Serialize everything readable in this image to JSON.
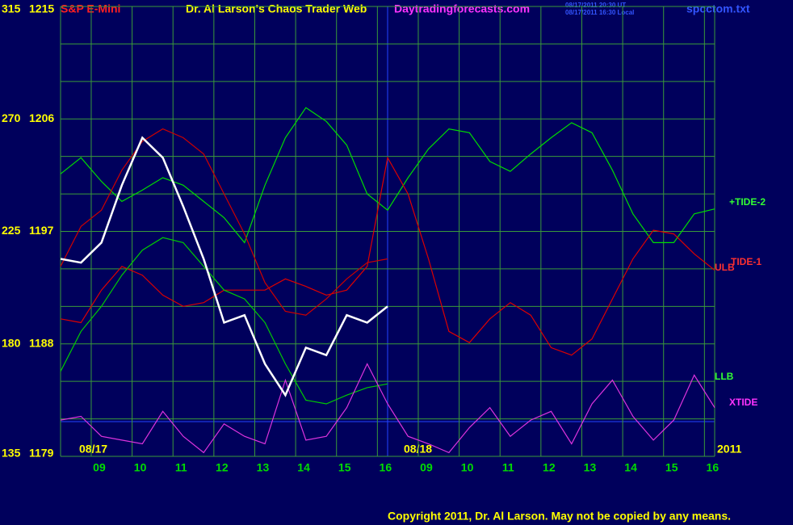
{
  "chart_data": {
    "type": "line",
    "title": "Dr. Al Larson's Chaos Trader Web",
    "subtitle": "S&P E-Mini",
    "site": "Daytradingforecasts.com",
    "timestamps": [
      "08/17/2011 20:30 UT",
      "08/17/2011 16:30 Local"
    ],
    "file": "spcctom.txt",
    "dates": [
      "08/17",
      "08/18"
    ],
    "year": "2011",
    "copyright": "Copyright 2011, Dr. Al Larson. May not be copied by any means.",
    "xlim": [
      -0.75,
      15.25
    ],
    "xticks": [
      {
        "value": 0,
        "label": "09"
      },
      {
        "value": 1,
        "label": "10"
      },
      {
        "value": 2,
        "label": "11"
      },
      {
        "value": 3,
        "label": "12"
      },
      {
        "value": 4,
        "label": "13"
      },
      {
        "value": 5,
        "label": "14"
      },
      {
        "value": 6,
        "label": "15"
      },
      {
        "value": 7,
        "label": "16"
      },
      {
        "value": 8,
        "label": "09"
      },
      {
        "value": 9,
        "label": "10"
      },
      {
        "value": 10,
        "label": "11"
      },
      {
        "value": 11,
        "label": "12"
      },
      {
        "value": 12,
        "label": "13"
      },
      {
        "value": 13,
        "label": "14"
      },
      {
        "value": 14,
        "label": "15"
      },
      {
        "value": 15,
        "label": "16"
      }
    ],
    "ylim": [
      1179,
      1215
    ],
    "yticks": [
      1179,
      1188,
      1197,
      1206,
      1215
    ],
    "ygrid": [
      1182,
      1185,
      1191,
      1194,
      1200,
      1203,
      1209,
      1212
    ],
    "y2lim": [
      135,
      315
    ],
    "y2ticks": [
      135,
      180,
      225,
      270,
      315
    ],
    "grid": true,
    "x": [
      -0.75,
      -0.25,
      0.25,
      0.75,
      1.25,
      1.75,
      2.25,
      2.75,
      3.25,
      3.75,
      4.25,
      4.75,
      5.25,
      5.75,
      6.25,
      6.75,
      7.25,
      7.75,
      8.25,
      8.75,
      9.25,
      9.75,
      10.25,
      10.75,
      11.25,
      11.75,
      12.25,
      12.75,
      13.25,
      13.75,
      14.25,
      14.75,
      15.25
    ],
    "price": {
      "color": "#ffffff",
      "values": [
        1194.8,
        1194.5,
        1196.1,
        1200.7,
        1204.5,
        1202.9,
        1199.0,
        1194.8,
        1189.7,
        1190.3,
        1186.4,
        1183.9,
        1187.7,
        1187.1,
        1190.3,
        1189.7,
        1191.0,
        null,
        null,
        null,
        null,
        null,
        null,
        null,
        null,
        null,
        null,
        null,
        null,
        null,
        null,
        null,
        null
      ]
    },
    "series": [
      {
        "name": "+TIDE-2",
        "color": "#00dd00",
        "values": [
          1201.6,
          1202.9,
          1201.0,
          1199.4,
          1200.3,
          1201.3,
          1200.7,
          1199.4,
          1198.1,
          1196.1,
          1200.7,
          1204.5,
          1206.9,
          1205.8,
          1203.9,
          1200.0,
          1198.7,
          1201.3,
          1203.6,
          1205.2,
          1204.9,
          1202.6,
          1201.8,
          1203.2,
          1204.5,
          1205.7,
          1204.9,
          1201.9,
          1198.4,
          1196.1,
          1196.1,
          1198.4,
          1198.8
        ]
      },
      {
        "name": "TIDE-1",
        "color": "#dd0000",
        "values": [
          1190.0,
          1189.7,
          1192.3,
          1194.2,
          1193.5,
          1191.9,
          1191.0,
          1191.3,
          1192.3,
          1192.3,
          1192.3,
          1193.2,
          1192.6,
          1191.9,
          1192.3,
          1194.2,
          1202.9,
          1200.0,
          1194.8,
          1189.0,
          1188.1,
          1190.0,
          1191.3,
          1190.3,
          1187.7,
          1187.1,
          1188.4,
          1191.6,
          1194.8,
          1197.1,
          1196.8,
          1195.2,
          1193.9
        ]
      },
      {
        "name": "ULB",
        "color": "#cc0000",
        "values": [
          1194.2,
          1197.4,
          1198.7,
          1201.9,
          1204.2,
          1205.2,
          1204.5,
          1203.2,
          1200.0,
          1196.8,
          1192.9,
          1190.6,
          1190.3,
          1191.6,
          1193.2,
          1194.5,
          1194.8,
          null,
          null,
          null,
          null,
          null,
          null,
          null,
          null,
          null,
          null,
          null,
          null,
          null,
          null,
          null,
          null
        ]
      },
      {
        "name": "LLB",
        "color": "#00cc00",
        "values": [
          1185.8,
          1189.0,
          1191.0,
          1193.5,
          1195.5,
          1196.5,
          1196.1,
          1194.2,
          1192.3,
          1191.6,
          1189.7,
          1186.4,
          1183.5,
          1183.2,
          1183.9,
          1184.5,
          1184.8,
          null,
          null,
          null,
          null,
          null,
          null,
          null,
          null,
          null,
          null,
          null,
          null,
          null,
          null,
          null,
          null
        ]
      },
      {
        "name": "XTIDE",
        "color": "#dd33dd",
        "values": [
          1181.9,
          1182.2,
          1180.6,
          1180.3,
          1180.0,
          1182.6,
          1180.6,
          1179.3,
          1181.6,
          1180.6,
          1180.0,
          1185.1,
          1180.3,
          1180.6,
          1182.9,
          1186.4,
          1183.2,
          1180.6,
          1180.0,
          1179.3,
          1181.3,
          1182.9,
          1180.6,
          1181.9,
          1182.6,
          1180.0,
          1183.2,
          1185.1,
          1182.2,
          1180.3,
          1181.9,
          1185.5,
          1182.9
        ]
      }
    ]
  }
}
